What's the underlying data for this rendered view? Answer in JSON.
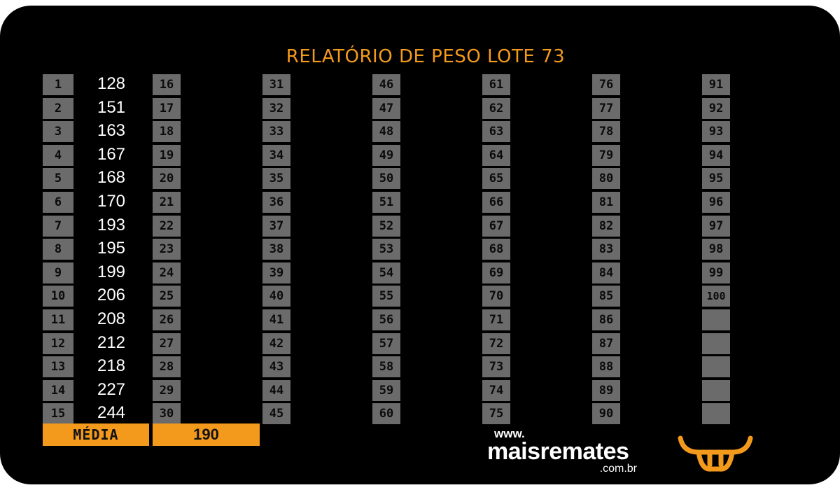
{
  "title": "RELATÓRIO DE PESO LOTE 73",
  "weights": [
    "128",
    "151",
    "163",
    "167",
    "168",
    "170",
    "193",
    "195",
    "199",
    "206",
    "208",
    "212",
    "218",
    "227",
    "244"
  ],
  "summary": {
    "label": "MÉDIA",
    "value": "190"
  },
  "logo": {
    "prefix": "www.",
    "name": "maisremates",
    "suffix": ".com.br"
  },
  "colors": {
    "accent": "#f39a1d",
    "cell": "#6b6b6b",
    "background": "#000000"
  },
  "icons": {
    "logo_mark": "bull-head-icon"
  },
  "notes": "Animal number cells run 1–100 in seven columns; columns 2–7 show numbers only and the last five cells of column 7 are empty."
}
